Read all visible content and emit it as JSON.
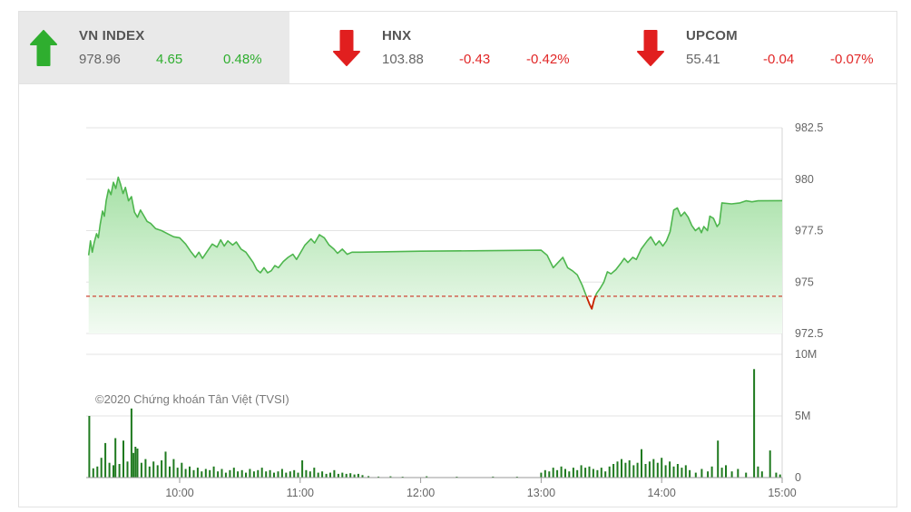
{
  "header": {
    "indices": [
      {
        "name": "VN INDEX",
        "value": "978.96",
        "change": "4.65",
        "change_pct": "0.48%",
        "direction": "up",
        "active": true
      },
      {
        "name": "HNX",
        "value": "103.88",
        "change": "-0.43",
        "change_pct": "-0.42%",
        "direction": "down",
        "active": false
      },
      {
        "name": "UPCOM",
        "value": "55.41",
        "change": "-0.04",
        "change_pct": "-0.07%",
        "direction": "down",
        "active": false
      }
    ]
  },
  "watermark": "©2020 Chứng khoán Tân Việt (TVSI)",
  "colors": {
    "up": "#2fae2f",
    "down": "#e12727",
    "line": "#4eb64e",
    "area_top": "#8cd88c",
    "area_bottom": "#f3fbf3",
    "below_ref": "#cc2200",
    "reference": "#cc3322",
    "bar": "#1f7a1f",
    "grid": "#e3e3e3",
    "axis": "#9a9a9a",
    "tick_text": "#666666"
  },
  "chart_data": [
    {
      "type": "area",
      "name": "vn-index-intraday",
      "xlim": [
        9.22,
        15.0
      ],
      "xticks": [
        10,
        11,
        12,
        13,
        14,
        15
      ],
      "xtick_labels": [
        "10:00",
        "11:00",
        "12:00",
        "13:00",
        "14:00",
        "15:00"
      ],
      "ylim": [
        972.5,
        982.5
      ],
      "yticks": [
        982.5,
        980,
        977.5,
        975,
        972.5
      ],
      "ytick_labels": [
        "982.5",
        "980",
        "977.5",
        "975",
        "972.5"
      ],
      "reference_value": 974.31,
      "grid": true,
      "legend": false,
      "series": [
        {
          "name": "VN-Index",
          "points": [
            [
              9.245,
              976.3
            ],
            [
              9.26,
              977.0
            ],
            [
              9.275,
              976.45
            ],
            [
              9.29,
              976.9
            ],
            [
              9.31,
              977.35
            ],
            [
              9.325,
              977.15
            ],
            [
              9.34,
              977.8
            ],
            [
              9.36,
              978.45
            ],
            [
              9.375,
              978.2
            ],
            [
              9.39,
              978.95
            ],
            [
              9.41,
              979.5
            ],
            [
              9.43,
              979.25
            ],
            [
              9.45,
              979.85
            ],
            [
              9.47,
              979.55
            ],
            [
              9.49,
              980.1
            ],
            [
              9.51,
              979.75
            ],
            [
              9.53,
              979.3
            ],
            [
              9.55,
              979.6
            ],
            [
              9.575,
              978.95
            ],
            [
              9.6,
              979.15
            ],
            [
              9.625,
              978.4
            ],
            [
              9.65,
              978.15
            ],
            [
              9.675,
              978.5
            ],
            [
              9.7,
              978.25
            ],
            [
              9.73,
              977.95
            ],
            [
              9.76,
              977.85
            ],
            [
              9.8,
              977.6
            ],
            [
              9.85,
              977.5
            ],
            [
              9.9,
              977.35
            ],
            [
              9.95,
              977.2
            ],
            [
              10.0,
              977.15
            ],
            [
              10.05,
              976.85
            ],
            [
              10.09,
              976.5
            ],
            [
              10.13,
              976.2
            ],
            [
              10.16,
              976.45
            ],
            [
              10.19,
              976.15
            ],
            [
              10.23,
              976.5
            ],
            [
              10.27,
              976.85
            ],
            [
              10.31,
              976.7
            ],
            [
              10.34,
              977.05
            ],
            [
              10.37,
              976.75
            ],
            [
              10.4,
              977.0
            ],
            [
              10.44,
              976.8
            ],
            [
              10.47,
              976.95
            ],
            [
              10.51,
              976.6
            ],
            [
              10.55,
              976.45
            ],
            [
              10.58,
              976.2
            ],
            [
              10.61,
              975.95
            ],
            [
              10.64,
              975.6
            ],
            [
              10.67,
              975.45
            ],
            [
              10.7,
              975.7
            ],
            [
              10.73,
              975.45
            ],
            [
              10.76,
              975.55
            ],
            [
              10.79,
              975.8
            ],
            [
              10.82,
              975.7
            ],
            [
              10.86,
              976.0
            ],
            [
              10.9,
              976.2
            ],
            [
              10.94,
              976.35
            ],
            [
              10.97,
              976.1
            ],
            [
              11.0,
              976.4
            ],
            [
              11.04,
              976.8
            ],
            [
              11.09,
              977.1
            ],
            [
              11.12,
              976.9
            ],
            [
              11.16,
              977.3
            ],
            [
              11.2,
              977.15
            ],
            [
              11.24,
              976.8
            ],
            [
              11.28,
              976.6
            ],
            [
              11.31,
              976.4
            ],
            [
              11.35,
              976.6
            ],
            [
              11.39,
              976.35
            ],
            [
              11.43,
              976.45
            ],
            [
              11.5,
              976.45
            ],
            [
              12.0,
              976.5
            ],
            [
              12.5,
              976.52
            ],
            [
              13.0,
              976.55
            ],
            [
              13.05,
              976.3
            ],
            [
              13.1,
              975.7
            ],
            [
              13.14,
              975.95
            ],
            [
              13.18,
              976.2
            ],
            [
              13.22,
              975.7
            ],
            [
              13.26,
              975.55
            ],
            [
              13.3,
              975.35
            ],
            [
              13.34,
              974.85
            ],
            [
              13.37,
              974.4
            ],
            [
              13.4,
              973.95
            ],
            [
              13.42,
              973.7
            ],
            [
              13.44,
              974.15
            ],
            [
              13.46,
              974.45
            ],
            [
              13.49,
              974.7
            ],
            [
              13.52,
              975.0
            ],
            [
              13.55,
              975.5
            ],
            [
              13.58,
              975.4
            ],
            [
              13.62,
              975.6
            ],
            [
              13.66,
              975.9
            ],
            [
              13.69,
              976.15
            ],
            [
              13.72,
              975.95
            ],
            [
              13.76,
              976.2
            ],
            [
              13.79,
              976.1
            ],
            [
              13.83,
              976.6
            ],
            [
              13.88,
              977.0
            ],
            [
              13.91,
              977.2
            ],
            [
              13.95,
              976.8
            ],
            [
              13.98,
              977.0
            ],
            [
              14.01,
              976.75
            ],
            [
              14.04,
              977.0
            ],
            [
              14.07,
              977.45
            ],
            [
              14.1,
              978.5
            ],
            [
              14.13,
              978.6
            ],
            [
              14.16,
              978.2
            ],
            [
              14.19,
              978.4
            ],
            [
              14.22,
              978.15
            ],
            [
              14.25,
              977.75
            ],
            [
              14.28,
              977.5
            ],
            [
              14.31,
              977.65
            ],
            [
              14.33,
              977.4
            ],
            [
              14.35,
              977.7
            ],
            [
              14.38,
              977.5
            ],
            [
              14.4,
              978.2
            ],
            [
              14.43,
              978.1
            ],
            [
              14.46,
              977.7
            ],
            [
              14.48,
              977.85
            ],
            [
              14.5,
              978.85
            ],
            [
              14.58,
              978.8
            ],
            [
              14.65,
              978.85
            ],
            [
              14.7,
              978.95
            ],
            [
              14.75,
              978.9
            ],
            [
              14.8,
              978.95
            ],
            [
              15.0,
              978.96
            ]
          ]
        }
      ]
    },
    {
      "type": "bar",
      "name": "volume",
      "ylim": [
        0,
        10
      ],
      "yticks": [
        10,
        5,
        0
      ],
      "ytick_labels": [
        "10M",
        "5M",
        "0"
      ],
      "unit": "millions of shares",
      "points": [
        [
          9.25,
          5.0
        ],
        [
          9.283,
          0.75
        ],
        [
          9.317,
          0.9
        ],
        [
          9.35,
          1.6
        ],
        [
          9.383,
          2.8
        ],
        [
          9.417,
          1.2
        ],
        [
          9.45,
          1.0
        ],
        [
          9.467,
          3.2
        ],
        [
          9.5,
          1.1
        ],
        [
          9.533,
          3.0
        ],
        [
          9.567,
          1.3
        ],
        [
          9.6,
          5.6
        ],
        [
          9.617,
          2.0
        ],
        [
          9.633,
          2.5
        ],
        [
          9.65,
          2.35
        ],
        [
          9.683,
          1.2
        ],
        [
          9.717,
          1.5
        ],
        [
          9.75,
          0.9
        ],
        [
          9.783,
          1.3
        ],
        [
          9.817,
          1.0
        ],
        [
          9.85,
          1.4
        ],
        [
          9.883,
          2.1
        ],
        [
          9.917,
          0.9
        ],
        [
          9.95,
          1.5
        ],
        [
          9.983,
          0.8
        ],
        [
          10.017,
          1.2
        ],
        [
          10.05,
          0.7
        ],
        [
          10.083,
          0.9
        ],
        [
          10.117,
          0.6
        ],
        [
          10.15,
          0.8
        ],
        [
          10.183,
          0.5
        ],
        [
          10.217,
          0.7
        ],
        [
          10.25,
          0.6
        ],
        [
          10.283,
          0.9
        ],
        [
          10.317,
          0.5
        ],
        [
          10.35,
          0.7
        ],
        [
          10.383,
          0.4
        ],
        [
          10.417,
          0.6
        ],
        [
          10.45,
          0.8
        ],
        [
          10.483,
          0.5
        ],
        [
          10.517,
          0.6
        ],
        [
          10.55,
          0.4
        ],
        [
          10.583,
          0.7
        ],
        [
          10.617,
          0.5
        ],
        [
          10.65,
          0.6
        ],
        [
          10.683,
          0.8
        ],
        [
          10.717,
          0.5
        ],
        [
          10.75,
          0.6
        ],
        [
          10.783,
          0.4
        ],
        [
          10.817,
          0.5
        ],
        [
          10.85,
          0.7
        ],
        [
          10.883,
          0.4
        ],
        [
          10.917,
          0.5
        ],
        [
          10.95,
          0.6
        ],
        [
          10.983,
          0.4
        ],
        [
          11.017,
          1.4
        ],
        [
          11.05,
          0.6
        ],
        [
          11.083,
          0.5
        ],
        [
          11.117,
          0.8
        ],
        [
          11.15,
          0.4
        ],
        [
          11.183,
          0.5
        ],
        [
          11.217,
          0.3
        ],
        [
          11.25,
          0.4
        ],
        [
          11.283,
          0.6
        ],
        [
          11.317,
          0.3
        ],
        [
          11.35,
          0.4
        ],
        [
          11.383,
          0.3
        ],
        [
          11.417,
          0.35
        ],
        [
          11.45,
          0.25
        ],
        [
          11.483,
          0.3
        ],
        [
          11.517,
          0.2
        ],
        [
          11.567,
          0.12
        ],
        [
          11.65,
          0.08
        ],
        [
          11.75,
          0.1
        ],
        [
          11.85,
          0.06
        ],
        [
          12.05,
          0.1
        ],
        [
          12.3,
          0.05
        ],
        [
          12.6,
          0.08
        ],
        [
          12.8,
          0.05
        ],
        [
          13.0,
          0.4
        ],
        [
          13.033,
          0.6
        ],
        [
          13.067,
          0.5
        ],
        [
          13.1,
          0.8
        ],
        [
          13.133,
          0.6
        ],
        [
          13.167,
          0.9
        ],
        [
          13.2,
          0.7
        ],
        [
          13.233,
          0.5
        ],
        [
          13.267,
          0.8
        ],
        [
          13.3,
          0.6
        ],
        [
          13.333,
          1.0
        ],
        [
          13.367,
          0.8
        ],
        [
          13.4,
          0.9
        ],
        [
          13.433,
          0.7
        ],
        [
          13.467,
          0.6
        ],
        [
          13.5,
          0.8
        ],
        [
          13.533,
          0.5
        ],
        [
          13.567,
          0.9
        ],
        [
          13.6,
          1.1
        ],
        [
          13.633,
          1.3
        ],
        [
          13.667,
          1.5
        ],
        [
          13.7,
          1.2
        ],
        [
          13.733,
          1.4
        ],
        [
          13.767,
          1.0
        ],
        [
          13.8,
          1.2
        ],
        [
          13.833,
          2.3
        ],
        [
          13.867,
          1.1
        ],
        [
          13.9,
          1.3
        ],
        [
          13.933,
          1.5
        ],
        [
          13.967,
          1.2
        ],
        [
          14.0,
          1.6
        ],
        [
          14.033,
          1.0
        ],
        [
          14.067,
          1.3
        ],
        [
          14.1,
          0.9
        ],
        [
          14.133,
          1.1
        ],
        [
          14.167,
          0.8
        ],
        [
          14.2,
          1.0
        ],
        [
          14.233,
          0.6
        ],
        [
          14.283,
          0.4
        ],
        [
          14.333,
          0.7
        ],
        [
          14.383,
          0.5
        ],
        [
          14.417,
          0.9
        ],
        [
          14.467,
          3.0
        ],
        [
          14.5,
          0.8
        ],
        [
          14.533,
          1.0
        ],
        [
          14.583,
          0.5
        ],
        [
          14.633,
          0.7
        ],
        [
          14.7,
          0.4
        ],
        [
          14.767,
          8.8
        ],
        [
          14.8,
          0.9
        ],
        [
          14.833,
          0.5
        ],
        [
          14.9,
          2.2
        ],
        [
          14.95,
          0.4
        ],
        [
          14.983,
          0.25
        ]
      ]
    }
  ]
}
